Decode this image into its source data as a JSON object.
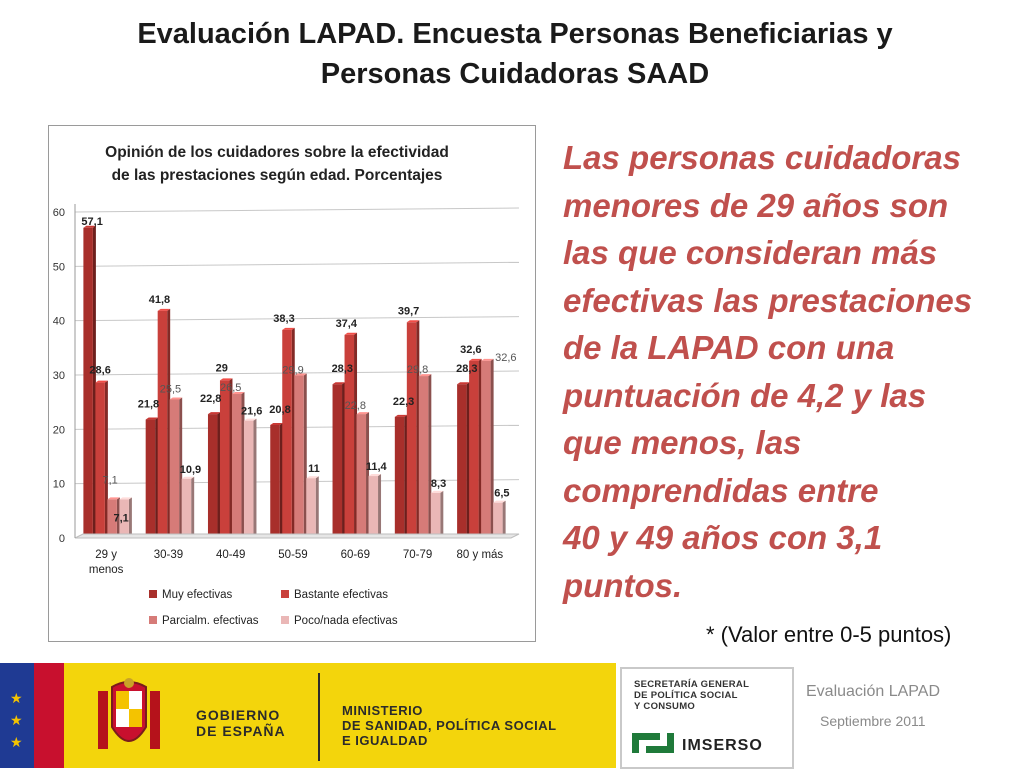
{
  "page": {
    "title_line1": "Evaluación  LAPAD.  Encuesta Personas Beneficiarias y",
    "title_line2": "Personas  Cuidadoras SAAD",
    "side_text": [
      "Las personas cuidadoras",
      "menores de 29 años son",
      "las que consideran más",
      "efectivas las prestaciones",
      "de la LAPAD con  una",
      "puntuación de 4,2 y las",
      "que menos,  las",
      "comprendidas entre",
      "40 y 49 años con 3,1",
      "puntos."
    ],
    "note": "* (Valor entre 0-5 puntos)"
  },
  "footer": {
    "gob_line1": "GOBIERNO",
    "gob_line2": "DE ESPAÑA",
    "min_line1": "MINISTERIO",
    "min_line2": "DE SANIDAD, POLÍTICA SOCIAL",
    "min_line3": "E IGUALDAD",
    "sec_line1": "SECRETARÍA GENERAL",
    "sec_line2": "DE POLÍTICA SOCIAL",
    "sec_line3": "Y CONSUMO",
    "imserso": "IMSERSO",
    "eval_label": "Evaluación LAPAD",
    "date_label": "Septiembre 2011"
  },
  "chart_data": {
    "type": "bar",
    "title_line1": "Opinión de los cuidadores sobre la efectividad",
    "title_line2": "de las prestaciones según edad. Porcentajes",
    "categories": [
      [
        "29 y",
        "menos"
      ],
      [
        "30-39"
      ],
      [
        "40-49"
      ],
      [
        "50-59"
      ],
      [
        "60-69"
      ],
      [
        "70-79"
      ],
      [
        "80 y más"
      ]
    ],
    "ylim": [
      0,
      60
    ],
    "yticks": [
      0,
      10,
      20,
      30,
      40,
      50,
      60
    ],
    "series": [
      {
        "name": "Muy  efectivas",
        "color": "#a82f2b",
        "values": [
          57.1,
          21.8,
          22.8,
          20.8,
          28.3,
          22.3,
          28.3
        ],
        "labels": [
          "57,1",
          "21,8",
          "22,8",
          "20,8",
          "28,3",
          "22,3",
          "28,3"
        ],
        "label_style": "bold"
      },
      {
        "name": "Bastante  efectivas",
        "color": "#c9403b",
        "values": [
          28.6,
          41.8,
          29,
          38.3,
          37.4,
          39.7,
          32.6
        ],
        "labels": [
          "28,6",
          "41,8",
          "29",
          "38,3",
          "37,4",
          "39,7",
          "32,6"
        ],
        "label_style": "bold"
      },
      {
        "name": "Parcialm. efectivas",
        "color": "#d67b78",
        "values": [
          7.1,
          25.5,
          26.5,
          29.9,
          22.8,
          29.8,
          32.6
        ],
        "labels": [
          "7,1",
          "25,5",
          "26,5",
          "29,9",
          "22,8",
          "29,8",
          "32,6"
        ],
        "label_style": "normal"
      },
      {
        "name": "Poco/nada efectivas",
        "color": "#eab7b6",
        "values": [
          7.1,
          10.9,
          21.6,
          11,
          11.4,
          8.3,
          6.5
        ],
        "labels": [
          "7,1",
          "10,9",
          "21,6",
          "11",
          "11,4",
          "8,3",
          "6,5"
        ],
        "label_style": "bold"
      }
    ]
  }
}
